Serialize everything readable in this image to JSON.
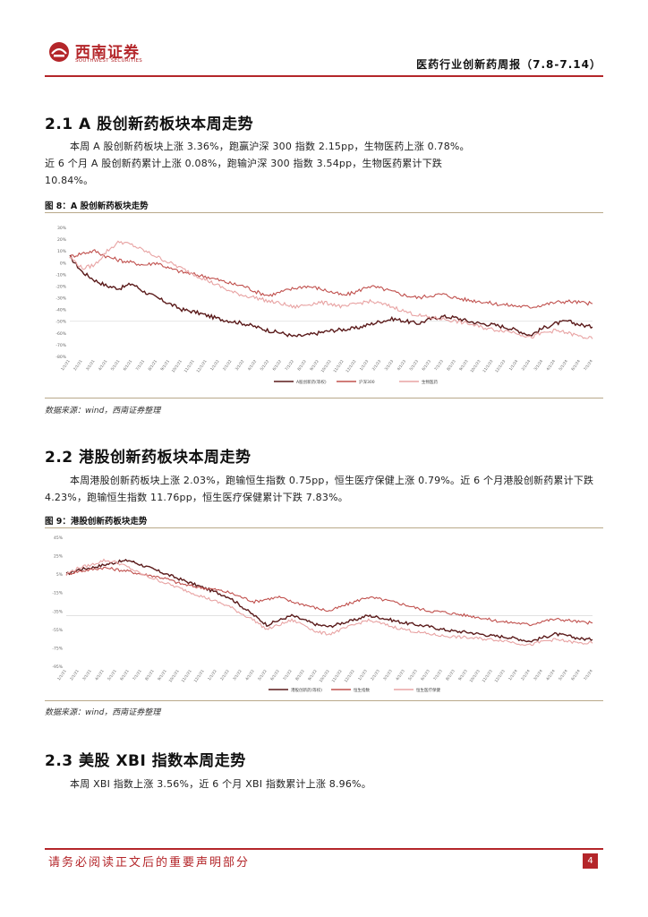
{
  "header": {
    "logo_cn": "西南证券",
    "logo_en": "SOUTHWEST SECURITIES",
    "doc_title": "医药行业创新药周报（7.8-7.14）"
  },
  "sections": [
    {
      "heading": "2.1 A 股创新药板块本周走势",
      "paragraph": [
        "本周 A 股创新药板块上涨 3.36%，跑赢沪深 300 指数 2.15pp，生物医药上涨 0.78%。",
        "近 6 个月 A 股创新药累计上涨 0.08%，跑输沪深 300 指数 3.54pp，生物医药累计下跌",
        "10.84%。"
      ],
      "figure_label": "图 8：A 股创新药板块走势",
      "source": "数据来源：wind，西南证券整理"
    },
    {
      "heading": "2.2  港股创新药板块本周走势",
      "paragraph": [
        "本周港股创新药板块上涨 2.03%，跑输恒生指数 0.75pp，恒生医疗保健上涨 0.79%。近 6 个月港股创新药累计下跌",
        "4.23%，跑输恒生指数 11.76pp，恒生医疗保健累计下跌 7.83%。"
      ],
      "figure_label": "图 9：港股创新药板块走势",
      "source": "数据来源：wind，西南证券整理"
    },
    {
      "heading": "2.3  美股 XBI 指数本周走势",
      "paragraph": [
        "本周 XBI 指数上涨 3.56%，近 6 个月 XBI 指数累计上涨 8.96%。"
      ]
    }
  ],
  "chart_data": [
    {
      "type": "line",
      "y_ticks": [
        "30%",
        "20%",
        "10%",
        "0%",
        "-10%",
        "-20%",
        "-30%",
        "-40%",
        "-50%",
        "-60%",
        "-70%",
        "-80%"
      ],
      "ylim": [
        -80,
        30
      ],
      "x_ticks": [
        "1/1/21",
        "2/1/21",
        "3/1/21",
        "4/1/21",
        "5/1/21",
        "6/1/21",
        "7/1/21",
        "8/1/21",
        "9/1/21",
        "10/1/21",
        "11/1/21",
        "12/1/21",
        "1/1/22",
        "2/1/22",
        "3/1/22",
        "4/1/22",
        "5/1/22",
        "6/1/22",
        "7/1/22",
        "8/1/22",
        "9/1/22",
        "10/1/22",
        "11/1/22",
        "12/1/22",
        "1/1/23",
        "2/1/23",
        "3/1/23",
        "4/1/23",
        "5/1/23",
        "6/1/23",
        "7/1/23",
        "8/1/23",
        "9/1/23",
        "10/1/23",
        "11/1/23",
        "12/1/23",
        "1/1/24",
        "2/1/24",
        "3/1/24",
        "4/1/24",
        "5/1/24",
        "6/1/24",
        "7/1/24"
      ],
      "legend_position": "bottom",
      "reference_line": -50,
      "series": [
        {
          "name": "A股创新药(等权)",
          "color": "#5a1a1a",
          "values": [
            5,
            -8,
            -15,
            -20,
            -22,
            -18,
            -25,
            -30,
            -35,
            -40,
            -42,
            -45,
            -48,
            -50,
            -52,
            -55,
            -58,
            -60,
            -63,
            -62,
            -60,
            -58,
            -57,
            -56,
            -53,
            -50,
            -48,
            -50,
            -52,
            -48,
            -46,
            -47,
            -50,
            -52,
            -53,
            -55,
            -58,
            -62,
            -56,
            -52,
            -50,
            -53,
            -55
          ]
        },
        {
          "name": "沪深300",
          "color": "#c0504d",
          "values": [
            5,
            8,
            10,
            5,
            2,
            0,
            -2,
            0,
            -5,
            -8,
            -10,
            -12,
            -15,
            -18,
            -20,
            -25,
            -28,
            -25,
            -22,
            -20,
            -22,
            -25,
            -28,
            -25,
            -20,
            -22,
            -25,
            -28,
            -30,
            -28,
            -27,
            -30,
            -32,
            -33,
            -35,
            -36,
            -37,
            -38,
            -36,
            -34,
            -33,
            -34,
            -35
          ]
        },
        {
          "name": "生物医药",
          "color": "#e8a3a3",
          "values": [
            5,
            -5,
            -2,
            10,
            18,
            15,
            10,
            5,
            0,
            -5,
            -10,
            -15,
            -20,
            -25,
            -28,
            -30,
            -33,
            -35,
            -38,
            -36,
            -34,
            -35,
            -38,
            -35,
            -33,
            -35,
            -38,
            -42,
            -45,
            -47,
            -48,
            -50,
            -52,
            -55,
            -57,
            -58,
            -60,
            -64,
            -60,
            -58,
            -60,
            -63,
            -65
          ]
        }
      ]
    },
    {
      "type": "line",
      "y_ticks": [
        "45%",
        "25%",
        "5%",
        "-15%",
        "-35%",
        "-55%",
        "-75%",
        "-95%"
      ],
      "ylim": [
        -95,
        45
      ],
      "x_ticks": [
        "1/1/21",
        "2/1/21",
        "3/1/21",
        "4/1/21",
        "5/1/21",
        "6/1/21",
        "7/1/21",
        "8/1/21",
        "9/1/21",
        "10/1/21",
        "11/1/21",
        "12/1/21",
        "1/1/22",
        "2/1/22",
        "3/1/22",
        "4/1/22",
        "5/1/22",
        "6/1/22",
        "7/1/22",
        "8/1/22",
        "9/1/22",
        "10/1/22",
        "11/1/22",
        "12/1/22",
        "1/1/23",
        "2/1/23",
        "3/1/23",
        "4/1/23",
        "5/1/23",
        "6/1/23",
        "7/1/23",
        "8/1/23",
        "9/1/23",
        "10/1/23",
        "11/1/23",
        "12/1/23",
        "1/1/24",
        "2/1/24",
        "3/1/24",
        "4/1/24",
        "5/1/24",
        "6/1/24",
        "7/1/24"
      ],
      "legend_position": "bottom",
      "reference_line": -40,
      "series": [
        {
          "name": "港股创新药(等权)",
          "color": "#5a1a1a",
          "values": [
            5,
            10,
            12,
            15,
            18,
            20,
            15,
            10,
            5,
            0,
            -5,
            -10,
            -15,
            -20,
            -30,
            -40,
            -50,
            -45,
            -40,
            -45,
            -50,
            -52,
            -48,
            -45,
            -40,
            -42,
            -45,
            -48,
            -50,
            -52,
            -55,
            -57,
            -58,
            -60,
            -62,
            -63,
            -65,
            -68,
            -64,
            -60,
            -62,
            -65,
            -66
          ]
        },
        {
          "name": "恒生指数",
          "color": "#c0504d",
          "values": [
            5,
            8,
            10,
            12,
            10,
            8,
            5,
            3,
            0,
            -5,
            -8,
            -10,
            -12,
            -15,
            -20,
            -25,
            -22,
            -20,
            -25,
            -28,
            -32,
            -35,
            -30,
            -25,
            -20,
            -22,
            -25,
            -28,
            -32,
            -35,
            -36,
            -38,
            -40,
            -42,
            -45,
            -47,
            -48,
            -50,
            -46,
            -44,
            -45,
            -47,
            -48
          ]
        },
        {
          "name": "恒生医疗保健",
          "color": "#e8a3a3",
          "values": [
            5,
            12,
            15,
            20,
            18,
            12,
            5,
            0,
            -5,
            -10,
            -15,
            -20,
            -25,
            -30,
            -38,
            -45,
            -55,
            -50,
            -45,
            -50,
            -58,
            -60,
            -55,
            -50,
            -45,
            -48,
            -52,
            -55,
            -58,
            -60,
            -62,
            -63,
            -64,
            -65,
            -66,
            -67,
            -70,
            -72,
            -68,
            -66,
            -68,
            -70,
            -70
          ]
        }
      ]
    }
  ],
  "footer": {
    "disclaimer": "请务必阅读正文后的重要声明部分",
    "page_number": "4"
  }
}
